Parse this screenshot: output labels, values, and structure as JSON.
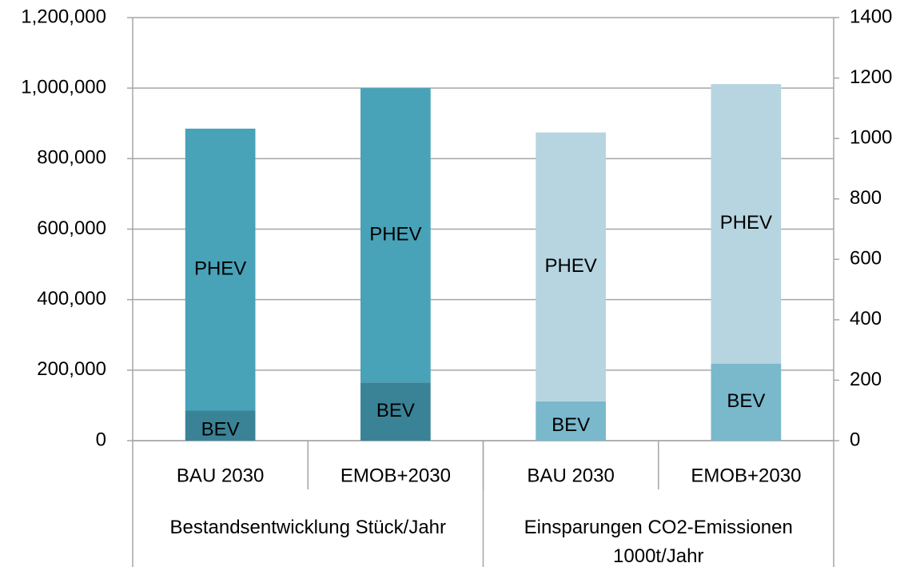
{
  "chart_data": {
    "type": "bar",
    "stacked": true,
    "categories": [
      "BAU 2030",
      "EMOB+2030",
      "BAU 2030",
      "EMOB+2030"
    ],
    "groups": [
      {
        "label": "Bestandsentwicklung Stück/Jahr",
        "categories": [
          0,
          1
        ]
      },
      {
        "label": "Einsparungen CO2-Emissionen 1000t/Jahr",
        "categories": [
          2,
          3
        ]
      }
    ],
    "series": [
      {
        "name": "BEV",
        "color": "#3a8396",
        "values": [
          85000,
          165000,
          null,
          null
        ]
      },
      {
        "name": "PHEV",
        "color": "#48a2b8",
        "values": [
          800000,
          835000,
          null,
          null
        ]
      },
      {
        "name": "BEV",
        "color": "#7ab8cc",
        "axis": "y2",
        "values": [
          null,
          null,
          130,
          255
        ]
      },
      {
        "name": "PHEV",
        "color": "#b6d5e0",
        "axis": "y2",
        "values": [
          null,
          null,
          890,
          925
        ]
      }
    ],
    "ylim": [
      0,
      1200000
    ],
    "yticks": [
      0,
      {
        "value": 200000,
        "label": "200,000"
      },
      {
        "value": 400000,
        "label": "400,000"
      },
      {
        "value": 600000,
        "label": "600,000"
      },
      {
        "value": 800000,
        "label": "800,000"
      },
      {
        "value": 1000000,
        "label": "1,000,000"
      },
      {
        "value": 1200000,
        "label": "1,200,000"
      }
    ],
    "y2lim": [
      0,
      1400
    ],
    "y2ticks": [
      0,
      200,
      400,
      600,
      800,
      1000,
      1200,
      1400
    ],
    "grid": true
  }
}
